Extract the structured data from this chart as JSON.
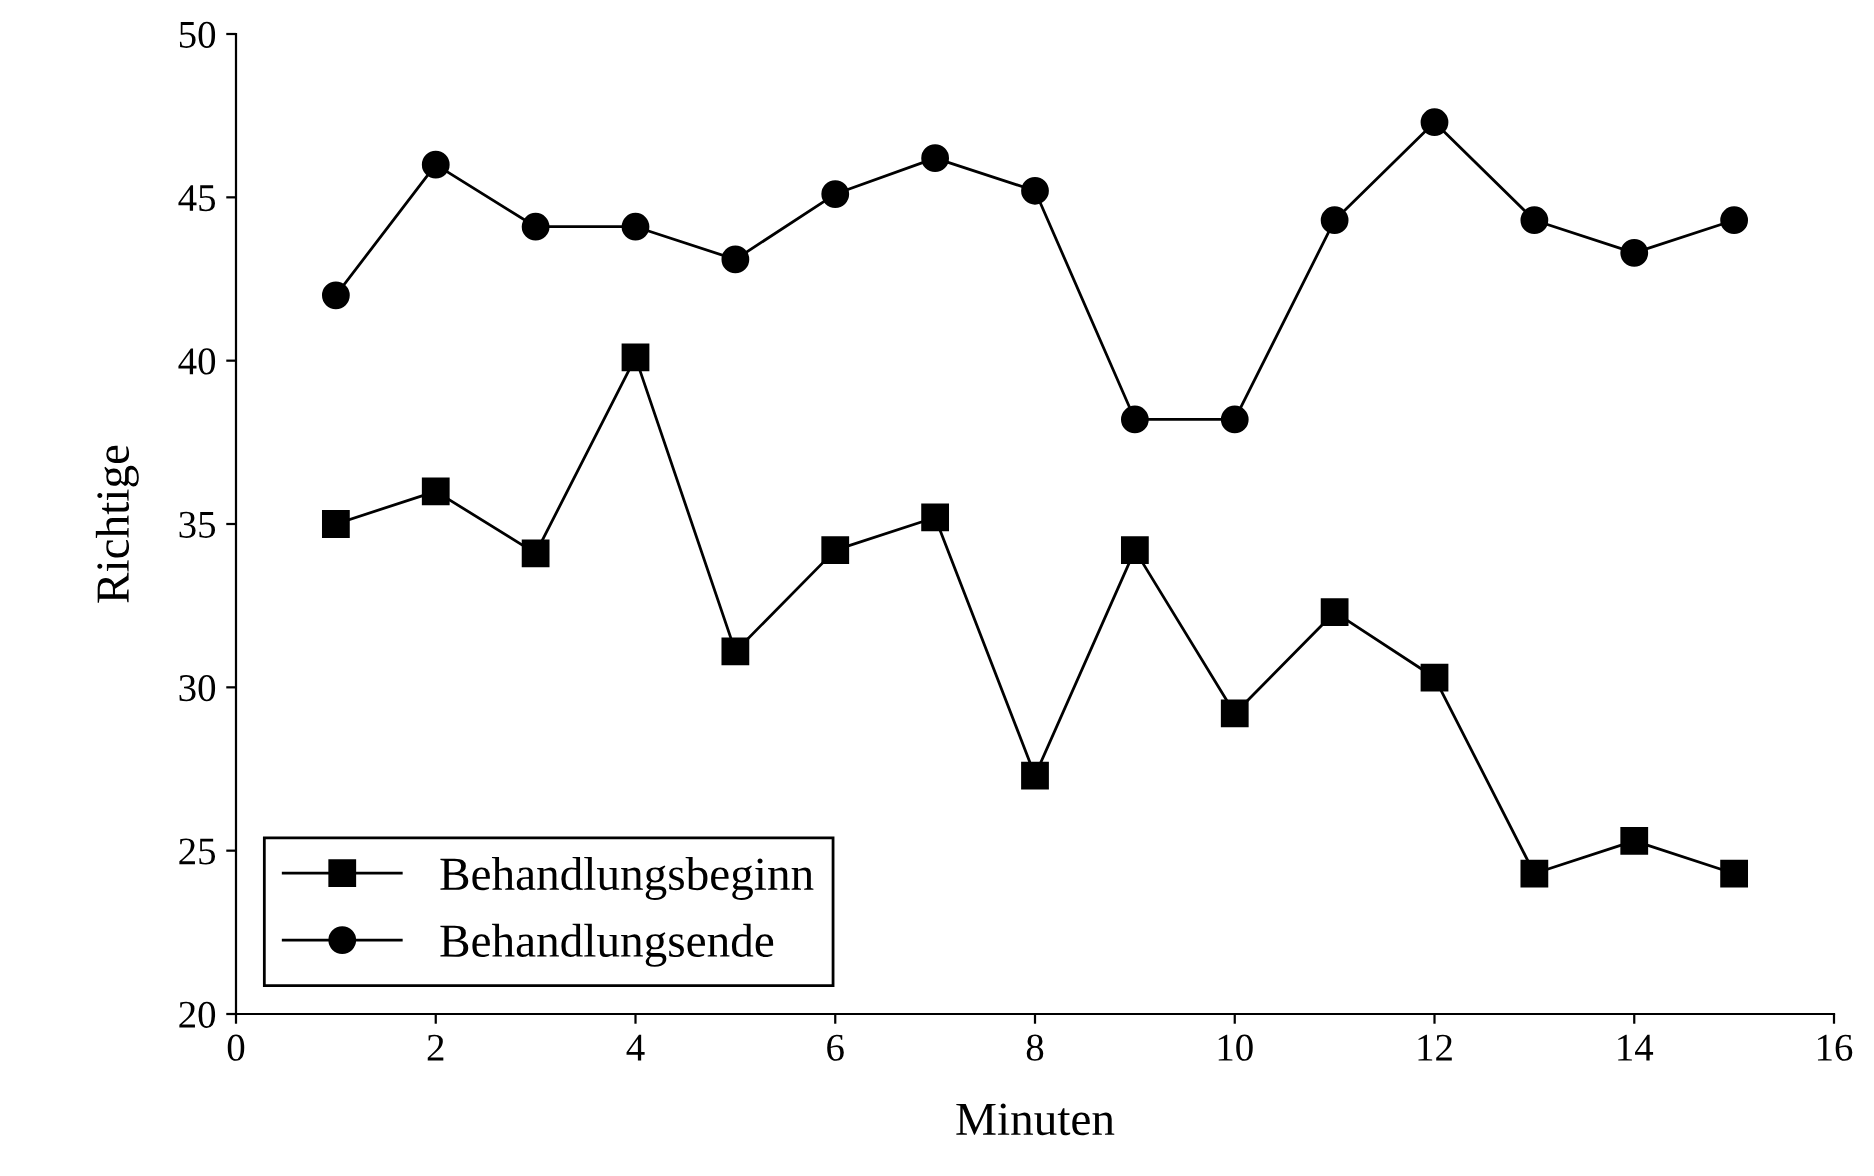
{
  "chart_data": {
    "type": "line",
    "xlabel": "Minuten",
    "ylabel": "Richtige",
    "x": [
      1,
      2,
      3,
      4,
      5,
      6,
      7,
      8,
      9,
      10,
      11,
      12,
      13,
      14,
      15
    ],
    "series": [
      {
        "name": "Behandlungsbeginn",
        "color": "#000000",
        "marker": "square",
        "values": [
          35.0,
          36.0,
          34.1,
          40.1,
          31.1,
          34.2,
          35.2,
          27.3,
          34.2,
          29.2,
          32.3,
          30.3,
          24.3,
          25.3,
          24.3
        ]
      },
      {
        "name": "Behandlungsende",
        "color": "#000000",
        "marker": "circle",
        "values": [
          42.0,
          46.0,
          44.1,
          44.1,
          43.1,
          45.1,
          46.2,
          45.2,
          38.2,
          38.2,
          44.3,
          47.3,
          44.3,
          43.3,
          44.3
        ]
      }
    ],
    "xlim": [
      0,
      16
    ],
    "xticks": [
      0,
      2,
      4,
      6,
      8,
      10,
      12,
      14,
      16
    ],
    "ylim": [
      20,
      50
    ],
    "yticks": [
      20,
      25,
      30,
      35,
      40,
      45,
      50
    ],
    "grid": false,
    "legend": "bottom left",
    "line_style": "solid"
  }
}
